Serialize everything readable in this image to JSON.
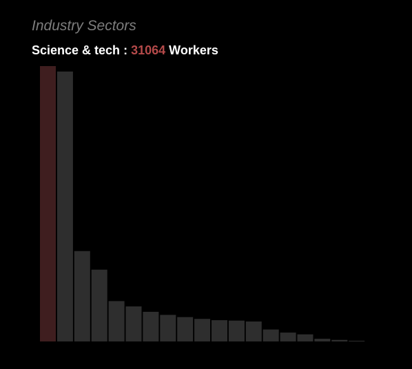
{
  "chart_data": {
    "type": "bar",
    "title": "Industry Sectors",
    "values": [
      31064,
      30450,
      10200,
      8100,
      4550,
      3950,
      3350,
      3000,
      2750,
      2550,
      2400,
      2350,
      2250,
      1350,
      1000,
      800,
      300,
      180,
      80
    ],
    "highlight_index": 0,
    "ylim": [
      0,
      31064
    ],
    "grid": false,
    "legend": "none"
  },
  "readout": {
    "label": "Science & tech",
    "separator": ":",
    "value": "31064",
    "unit": "Workers"
  },
  "colors": {
    "background": "#000000",
    "bar": "#2e2e2e",
    "bar_highlight": "#3f1e1f",
    "value_accent": "#b54a4a",
    "title": "#7d7d7d",
    "readout_text": "#ffffff"
  }
}
